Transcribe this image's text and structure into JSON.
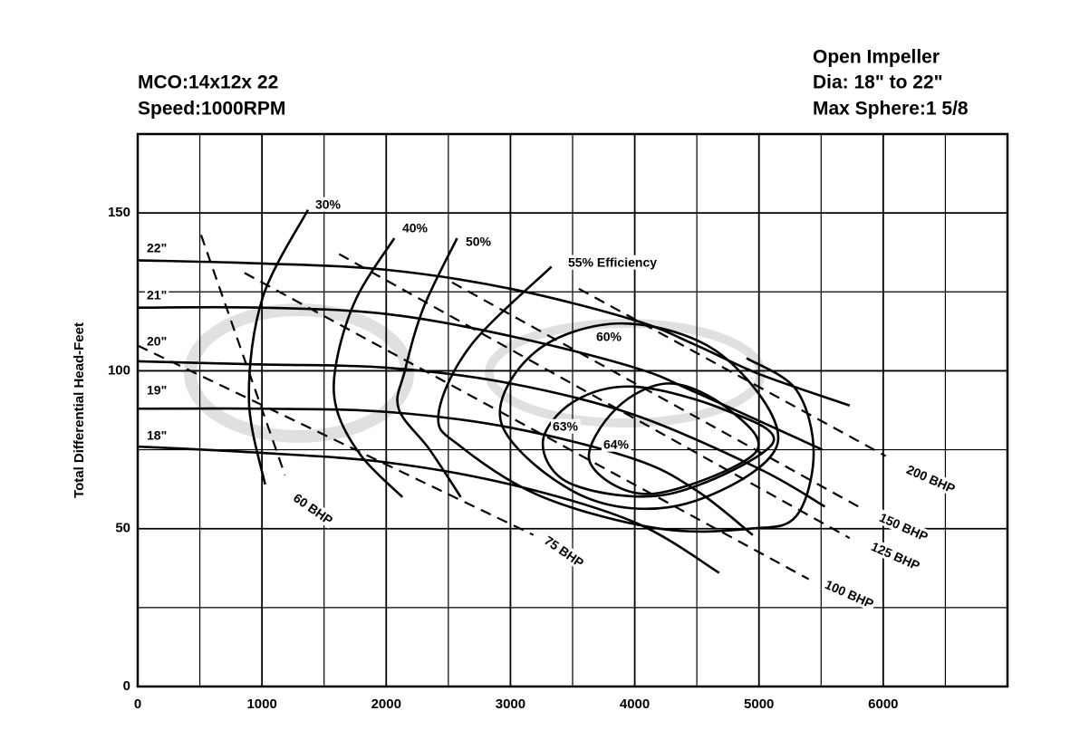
{
  "chart_data": {
    "type": "line",
    "title_lines": [
      "MCO:14x12x 22",
      "Speed:1000RPM"
    ],
    "subtitle_lines": [
      "Open Impeller",
      "Dia: 18\" to 22\"",
      "Max Sphere:1  5/8"
    ],
    "y_label": "Total Differential Head-Feet",
    "xlim": [
      0,
      7000
    ],
    "ylim": [
      0,
      175
    ],
    "xticks": [
      0,
      1000,
      2000,
      3000,
      4000,
      5000,
      6000
    ],
    "yticks": [
      0,
      50,
      100,
      150
    ],
    "minor_xticks": [
      500,
      1500,
      2500,
      3500,
      4500,
      5500,
      6500,
      7000
    ],
    "minor_yticks": [
      25,
      75,
      125,
      175
    ],
    "grid": true,
    "color": "#000000",
    "series": [
      {
        "name": "22\"",
        "dashed": false,
        "x": [
          0,
          1000,
          2000,
          3000,
          4000,
          4500,
          5000,
          5730
        ],
        "values": [
          135,
          134,
          132,
          126,
          116,
          108,
          99,
          89
        ]
      },
      {
        "name": "21\"",
        "dashed": false,
        "x": [
          0,
          1000,
          2000,
          3000,
          4000,
          4500,
          5510
        ],
        "values": [
          120,
          120,
          118,
          111,
          101,
          93,
          75
        ]
      },
      {
        "name": "20\"",
        "dashed": false,
        "x": [
          0,
          1000,
          2000,
          3000,
          4000,
          5000,
          5530
        ],
        "values": [
          103,
          102,
          101,
          96,
          86,
          69,
          57
        ]
      },
      {
        "name": "19\"",
        "dashed": false,
        "x": [
          0,
          1000,
          2000,
          3000,
          4000,
          4500,
          4950
        ],
        "values": [
          88,
          88,
          87,
          82,
          72,
          62,
          48
        ]
      },
      {
        "name": "18\"",
        "dashed": false,
        "x": [
          0,
          1000,
          2000,
          3000,
          4000,
          4680
        ],
        "values": [
          76,
          74,
          71,
          64,
          52,
          36
        ]
      },
      {
        "name": "30%",
        "dashed": false,
        "x": [
          1370,
          1004,
          895,
          1025
        ],
        "values": [
          151,
          123,
          91,
          64
        ]
      },
      {
        "name": "40%",
        "dashed": false,
        "x": [
          2065,
          1760,
          1600,
          1600,
          1800,
          2130
        ],
        "values": [
          142,
          123,
          103,
          88,
          73,
          60
        ]
      },
      {
        "name": "50%",
        "dashed": false,
        "x": [
          2570,
          2300,
          2150,
          2100,
          2350,
          2600
        ],
        "values": [
          142,
          120,
          100,
          88,
          75,
          60
        ]
      },
      {
        "name": "55% Efficiency",
        "dashed": false,
        "x": [
          3330,
          2680,
          2420,
          2600,
          3260,
          4200,
          4930,
          5300,
          5440,
          5300,
          4900
        ],
        "values": [
          133,
          108,
          86,
          76,
          60,
          50,
          50,
          54,
          74,
          94,
          104
        ]
      },
      {
        "name": "60%",
        "dashed": false,
        "closed": true,
        "x": [
          3910,
          4700,
          5150,
          4420,
          3600,
          2930,
          3200
        ],
        "values": [
          115,
          105,
          77,
          58,
          60,
          83,
          106
        ]
      },
      {
        "name": "63%",
        "dashed": false,
        "closed": true,
        "x": [
          3985,
          4700,
          5110,
          4280,
          3500,
          3260,
          3500
        ],
        "values": [
          95,
          88,
          77,
          61,
          64,
          77,
          90
        ]
      },
      {
        "name": "64%",
        "dashed": false,
        "closed": true,
        "x": [
          4280,
          4750,
          4970,
          4130,
          3640,
          3850
        ],
        "values": [
          96,
          88,
          74,
          61,
          71,
          88
        ]
      },
      {
        "name": "60 BHP",
        "dashed": true,
        "x": [
          510,
          1185
        ],
        "values": [
          143,
          67
        ]
      },
      {
        "name": "75 BHP",
        "dashed": true,
        "x": [
          0,
          3185
        ],
        "values": [
          108,
          48
        ]
      },
      {
        "name": "100 BHP",
        "dashed": true,
        "x": [
          860,
          5400
        ],
        "values": [
          131,
          34
        ]
      },
      {
        "name": "125 BHP",
        "dashed": true,
        "x": [
          1620,
          5730
        ],
        "values": [
          137,
          47
        ]
      },
      {
        "name": "150 BHP",
        "dashed": true,
        "x": [
          2530,
          5800
        ],
        "values": [
          128,
          57
        ]
      },
      {
        "name": "200 BHP",
        "dashed": true,
        "x": [
          3550,
          6020
        ],
        "values": [
          126,
          73
        ]
      }
    ]
  }
}
